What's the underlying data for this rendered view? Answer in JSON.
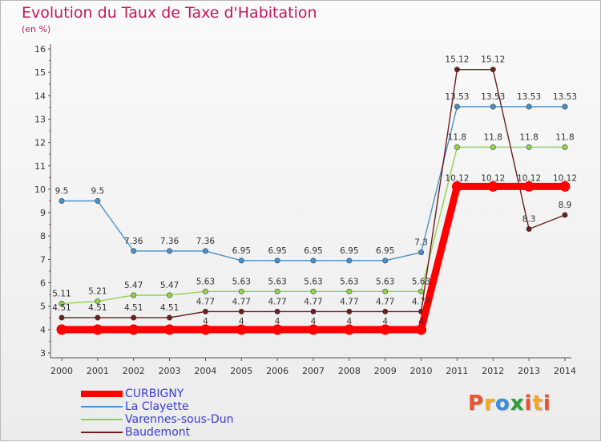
{
  "header": {
    "title": "Evolution du Taux de Taxe d'Habitation",
    "unit": "(en %)"
  },
  "logo": {
    "letters": [
      "P",
      "r",
      "o",
      "x",
      "i",
      "t",
      "i"
    ]
  },
  "colors": {
    "title": "#c2185b",
    "legend_text": "#3b3bd6",
    "logo": [
      "#e8542f",
      "#f5a623",
      "#3a8fd8",
      "#2c9e3a",
      "#e8542f",
      "#f5a623",
      "#e8542f"
    ]
  },
  "chart_data": {
    "type": "line",
    "title": "Evolution du Taux de Taxe d'Habitation",
    "ylabel": "(en %)",
    "xlabel": "",
    "ylim": [
      3,
      16
    ],
    "grid": false,
    "legend_position": "bottom-left",
    "categories": [
      "2000",
      "2001",
      "2002",
      "2003",
      "2004",
      "2005",
      "2006",
      "2007",
      "2008",
      "2009",
      "2010",
      "2011",
      "2012",
      "2013",
      "2014"
    ],
    "y_ticks": [
      "3",
      "4",
      "5",
      "6",
      "7",
      "8",
      "9",
      "10",
      "11",
      "12",
      "13",
      "14",
      "15",
      "16"
    ],
    "series": [
      {
        "name": "CURBIGNY",
        "color": "#ff0000",
        "values": [
          4,
          4,
          4,
          4,
          4,
          4,
          4,
          4,
          4,
          4,
          4,
          10.12,
          10.12,
          10.12,
          10.12
        ],
        "labels": [
          "",
          "",
          "",
          "",
          "4",
          "4",
          "4",
          "4",
          "4",
          "4",
          "4",
          "10.12",
          "10.12",
          "10.12",
          "10.12"
        ]
      },
      {
        "name": "La Clayette",
        "color": "#4a90c8",
        "values": [
          9.5,
          9.5,
          7.36,
          7.36,
          7.36,
          6.95,
          6.95,
          6.95,
          6.95,
          6.95,
          7.3,
          13.53,
          13.53,
          13.53,
          13.53
        ],
        "labels": [
          "9.5",
          "9.5",
          "7.36",
          "7.36",
          "7.36",
          "6.95",
          "6.95",
          "6.95",
          "6.95",
          "6.95",
          "7.3",
          "13.53",
          "13.53",
          "13.53",
          "13.53"
        ]
      },
      {
        "name": "Varennes-sous-Dun",
        "color": "#8fd44a",
        "values": [
          5.11,
          5.21,
          5.47,
          5.47,
          5.63,
          5.63,
          5.63,
          5.63,
          5.63,
          5.63,
          5.63,
          11.8,
          11.8,
          11.8,
          11.8
        ],
        "labels": [
          "5.11",
          "5.21",
          "5.47",
          "5.47",
          "5.63",
          "5.63",
          "5.63",
          "5.63",
          "5.63",
          "5.63",
          "5.63",
          "11.8",
          "11.8",
          "11.8",
          "11.8"
        ]
      },
      {
        "name": "Baudemont",
        "color": "#6b1f1f",
        "values": [
          4.51,
          4.51,
          4.51,
          4.51,
          4.77,
          4.77,
          4.77,
          4.77,
          4.77,
          4.77,
          4.77,
          15.12,
          15.12,
          8.3,
          8.9
        ],
        "labels": [
          "4.51",
          "4.51",
          "4.51",
          "4.51",
          "4.77",
          "4.77",
          "4.77",
          "4.77",
          "4.77",
          "4.77",
          "4.77",
          "15.12",
          "15.12",
          "8.3",
          "8.9"
        ]
      }
    ]
  }
}
